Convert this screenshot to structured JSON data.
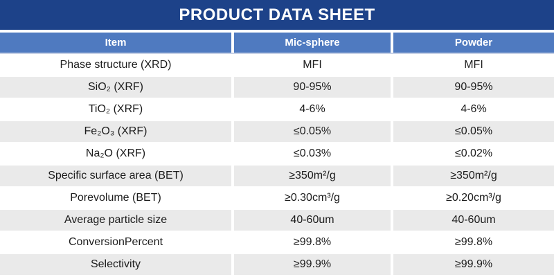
{
  "title_bar": {
    "title": "PRODUCT DATA SHEET"
  },
  "colors": {
    "title_bg": "#1d4289",
    "header_bg": "#4f7ac0",
    "row_alt_bg": "#eaeaea",
    "header_text": "#ffffff",
    "body_text": "#1c1c1c",
    "header_border": "#c7d1e6"
  },
  "table": {
    "headers": [
      "Item",
      "Mic-sphere",
      "Powder"
    ],
    "rows": [
      [
        "Phase structure (XRD)",
        "MFI",
        "MFI"
      ],
      [
        "SiO₂ (XRF)",
        "90-95%",
        "90-95%"
      ],
      [
        "TiO₂ (XRF)",
        "4-6%",
        "4-6%"
      ],
      [
        "Fe₂O₃ (XRF)",
        "≤0.05%",
        "≤0.05%"
      ],
      [
        "Na₂O (XRF)",
        "≤0.03%",
        "≤0.02%"
      ],
      [
        "Specific surface area (BET)",
        "≥350m²/g",
        "≥350m²/g"
      ],
      [
        "Porevolume (BET)",
        "≥0.30cm³/g",
        "≥0.20cm³/g"
      ],
      [
        "Average particle size",
        "40-60um",
        "40-60um"
      ],
      [
        "ConversionPercent",
        "≥99.8%",
        "≥99.8%"
      ],
      [
        "Selectivity",
        "≥99.9%",
        "≥99.9%"
      ]
    ]
  }
}
